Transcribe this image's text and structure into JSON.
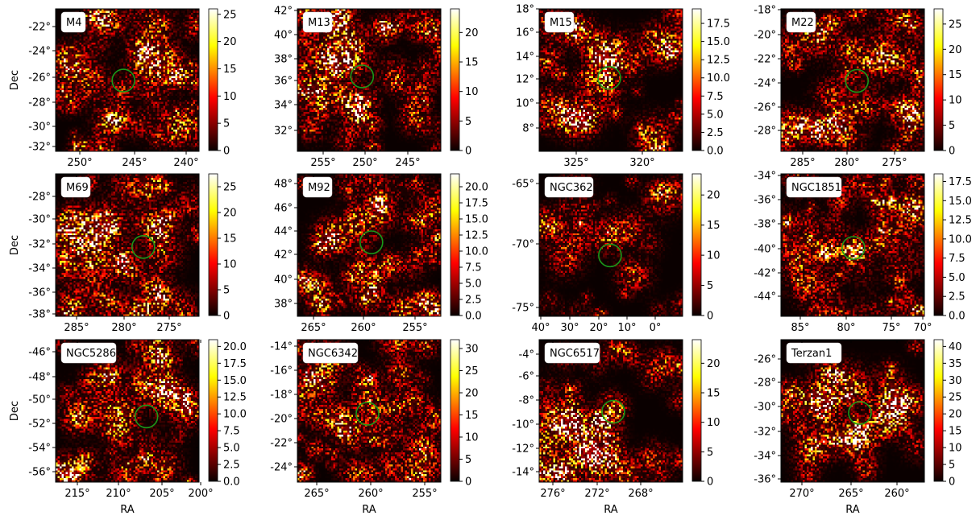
{
  "figure": {
    "colormap": "hot",
    "marker_color": "#1a9a1a",
    "label_box_color": "#ffffff"
  },
  "chart_data": [
    {
      "type": "heatmap",
      "title": "M4",
      "xlabel": "",
      "ylabel": "Dec",
      "xticks": [
        "250°",
        "245°",
        "240°"
      ],
      "yticks": [
        "-22°",
        "-24°",
        "-26°",
        "-28°",
        "-30°",
        "-32°"
      ],
      "cbar_ticks": [
        "0",
        "5",
        "10",
        "15",
        "20",
        "25"
      ],
      "cbar_range": [
        0,
        26
      ],
      "cluster_center": {
        "ra": 245.9,
        "dec": -26.5
      },
      "density": "patchy"
    },
    {
      "type": "heatmap",
      "title": "M13",
      "xlabel": "",
      "ylabel": "",
      "xticks": [
        "255°",
        "250°",
        "245°"
      ],
      "yticks": [
        "32°",
        "34°",
        "36°",
        "38°",
        "40°",
        "42°"
      ],
      "cbar_ticks": [
        "0",
        "5",
        "10",
        "15",
        "20"
      ],
      "cbar_range": [
        0,
        24
      ],
      "cluster_center": {
        "ra": 250.4,
        "dec": 36.5
      },
      "density": "patchy"
    },
    {
      "type": "heatmap",
      "title": "M15",
      "xlabel": "",
      "ylabel": "",
      "xticks": [
        "325°",
        "320°"
      ],
      "yticks": [
        "8°",
        "10°",
        "12°",
        "14°",
        "16°",
        "18°"
      ],
      "cbar_ticks": [
        "0.0",
        "2.5",
        "5.0",
        "7.5",
        "10.0",
        "12.5",
        "15.0",
        "17.5"
      ],
      "cbar_range": [
        0,
        19.5
      ],
      "cluster_center": {
        "ra": 322.5,
        "dec": 12.2
      },
      "density": "patchy"
    },
    {
      "type": "heatmap",
      "title": "M22",
      "xlabel": "",
      "ylabel": "",
      "xticks": [
        "285°",
        "280°",
        "275°"
      ],
      "yticks": [
        "-18°",
        "-20°",
        "-22°",
        "-24°",
        "-26°",
        "-28°"
      ],
      "cbar_ticks": [
        "0",
        "5",
        "10",
        "15",
        "20",
        "25"
      ],
      "cbar_range": [
        0,
        28
      ],
      "cluster_center": {
        "ra": 279.1,
        "dec": -23.9
      },
      "density": "patchy"
    },
    {
      "type": "heatmap",
      "title": "M69",
      "xlabel": "",
      "ylabel": "Dec",
      "xticks": [
        "285°",
        "280°",
        "275°"
      ],
      "yticks": [
        "-28°",
        "-30°",
        "-32°",
        "-34°",
        "-36°",
        "-38°"
      ],
      "cbar_ticks": [
        "0",
        "5",
        "10",
        "15",
        "20",
        "25"
      ],
      "cbar_range": [
        0,
        27.5
      ],
      "cluster_center": {
        "ra": 277.8,
        "dec": -32.3
      },
      "density": "patchy"
    },
    {
      "type": "heatmap",
      "title": "M92",
      "xlabel": "",
      "ylabel": "",
      "xticks": [
        "265°",
        "260°",
        "255°"
      ],
      "yticks": [
        "38°",
        "40°",
        "42°",
        "44°",
        "46°",
        "48°"
      ],
      "cbar_ticks": [
        "0.0",
        "2.5",
        "5.0",
        "7.5",
        "10.0",
        "12.5",
        "15.0",
        "17.5",
        "20.0"
      ],
      "cbar_range": [
        0,
        22
      ],
      "cluster_center": {
        "ra": 259.3,
        "dec": 43.1
      },
      "density": "patchy"
    },
    {
      "type": "heatmap",
      "title": "NGC362",
      "xlabel": "",
      "ylabel": "",
      "xticks": [
        "40°",
        "30°",
        "20°",
        "10°",
        "0°"
      ],
      "yticks": [
        "-65°",
        "-70°",
        "-75°"
      ],
      "cbar_ticks": [
        "0",
        "5",
        "10",
        "15",
        "20"
      ],
      "cbar_range": [
        0,
        23.5
      ],
      "cluster_center": {
        "ra": 15.8,
        "dec": -70.8
      },
      "density": "sparse"
    },
    {
      "type": "heatmap",
      "title": "NGC1851",
      "xlabel": "",
      "ylabel": "",
      "xticks": [
        "85°",
        "80°",
        "75°",
        "70°"
      ],
      "yticks": [
        "-34°",
        "-36°",
        "-38°",
        "-40°",
        "-42°",
        "-44°"
      ],
      "cbar_ticks": [
        "0.0",
        "2.5",
        "5.0",
        "7.5",
        "10.0",
        "12.5",
        "15.0",
        "17.5"
      ],
      "cbar_range": [
        0,
        18.5
      ],
      "cluster_center": {
        "ra": 78.5,
        "dec": -40.0
      },
      "density": "patchy"
    },
    {
      "type": "heatmap",
      "title": "NGC5286",
      "xlabel": "RA",
      "ylabel": "Dec",
      "xticks": [
        "215°",
        "210°",
        "205°",
        "200°"
      ],
      "yticks": [
        "-46°",
        "-48°",
        "-50°",
        "-52°",
        "-54°",
        "-56°"
      ],
      "cbar_ticks": [
        "0.0",
        "2.5",
        "5.0",
        "7.5",
        "10.0",
        "12.5",
        "15.0",
        "17.5",
        "20.0"
      ],
      "cbar_range": [
        0,
        21
      ],
      "cluster_center": {
        "ra": 206.6,
        "dec": -51.4
      },
      "density": "patchy"
    },
    {
      "type": "heatmap",
      "title": "NGC6342",
      "xlabel": "RA",
      "ylabel": "",
      "xticks": [
        "265°",
        "260°",
        "255°"
      ],
      "yticks": [
        "-14°",
        "-16°",
        "-18°",
        "-20°",
        "-22°",
        "-24°"
      ],
      "cbar_ticks": [
        "0",
        "5",
        "10",
        "15",
        "20",
        "25",
        "30"
      ],
      "cbar_range": [
        0,
        32
      ],
      "cluster_center": {
        "ra": 260.3,
        "dec": -19.6
      },
      "density": "patchy"
    },
    {
      "type": "heatmap",
      "title": "NGC6517",
      "xlabel": "RA",
      "ylabel": "",
      "xticks": [
        "276°",
        "272°",
        "268°"
      ],
      "yticks": [
        "-4°",
        "-6°",
        "-8°",
        "-10°",
        "-12°",
        "-14°"
      ],
      "cbar_ticks": [
        "0",
        "5",
        "10",
        "15",
        "20"
      ],
      "cbar_range": [
        0,
        24
      ],
      "cluster_center": {
        "ra": 270.5,
        "dec": -8.9
      },
      "density": "dense-left"
    },
    {
      "type": "heatmap",
      "title": "Terzan1",
      "xlabel": "RA",
      "ylabel": "",
      "xticks": [
        "270°",
        "265°",
        "260°"
      ],
      "yticks": [
        "-26°",
        "-28°",
        "-30°",
        "-32°",
        "-34°",
        "-36°"
      ],
      "cbar_ticks": [
        "0",
        "5",
        "10",
        "15",
        "20",
        "25",
        "30",
        "35",
        "40"
      ],
      "cbar_range": [
        0,
        42
      ],
      "cluster_center": {
        "ra": 263.9,
        "dec": -30.5
      },
      "density": "dense-center"
    }
  ]
}
